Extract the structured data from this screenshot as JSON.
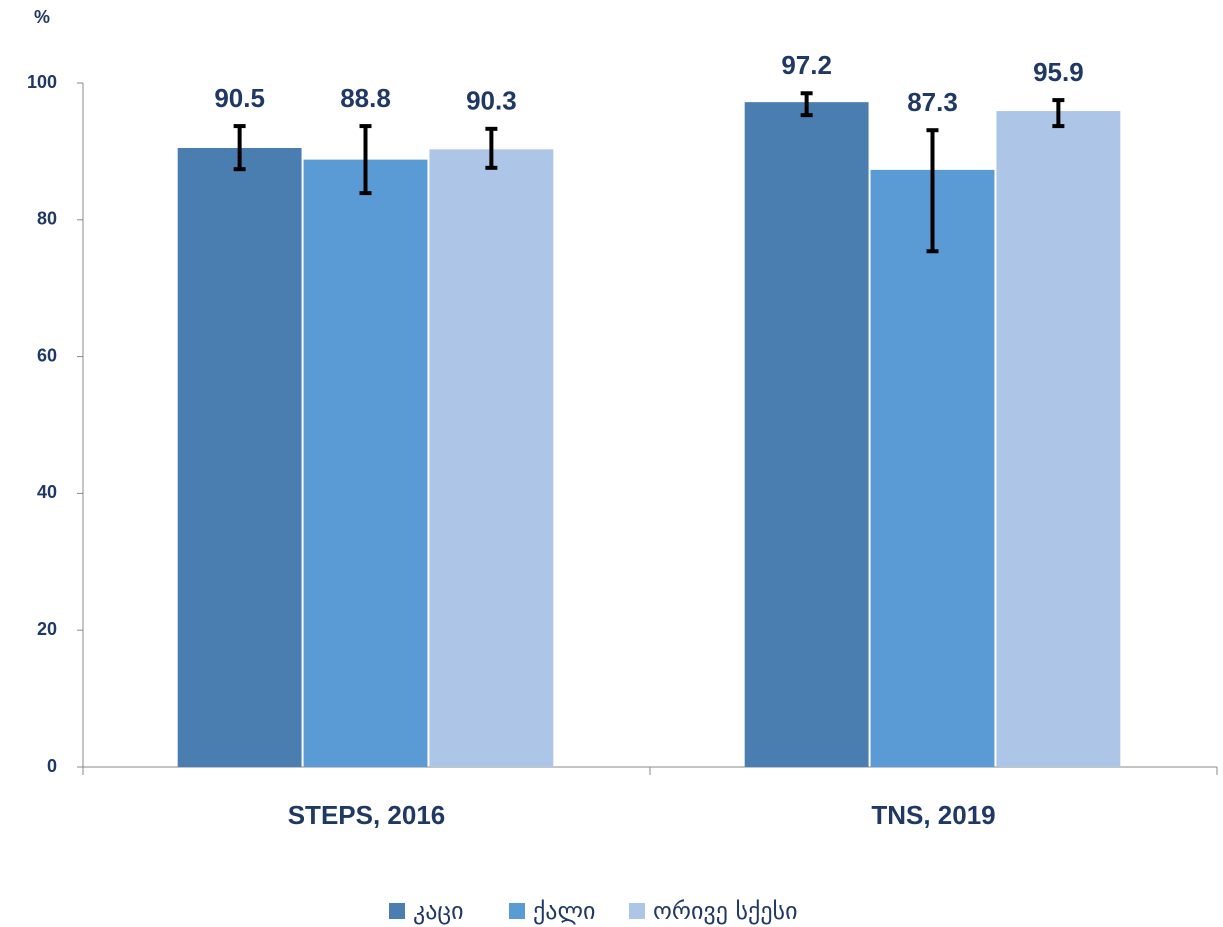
{
  "chart_data": {
    "type": "bar",
    "y_label": "%",
    "categories": [
      "STEPS, 2016",
      "TNS, 2019"
    ],
    "series": [
      {
        "name": "კაცი",
        "color": "#4a7eb0",
        "values": [
          90.5,
          97.2
        ],
        "error_plus": [
          3.2,
          1.3
        ],
        "error_minus": [
          3.1,
          1.9
        ]
      },
      {
        "name": "ქალი",
        "color": "#5b9bd5",
        "values": [
          88.8,
          87.3
        ],
        "error_plus": [
          4.9,
          5.8
        ],
        "error_minus": [
          4.9,
          11.9
        ]
      },
      {
        "name": "ორივე სქესი",
        "color": "#adc5e6",
        "values": [
          90.3,
          95.9
        ],
        "error_plus": [
          3.0,
          1.6
        ],
        "error_minus": [
          2.7,
          2.2
        ]
      }
    ],
    "ylim": [
      0,
      100
    ],
    "yticks": [
      0,
      20,
      40,
      60,
      80,
      100
    ],
    "grid": false,
    "legend": "bottom"
  }
}
